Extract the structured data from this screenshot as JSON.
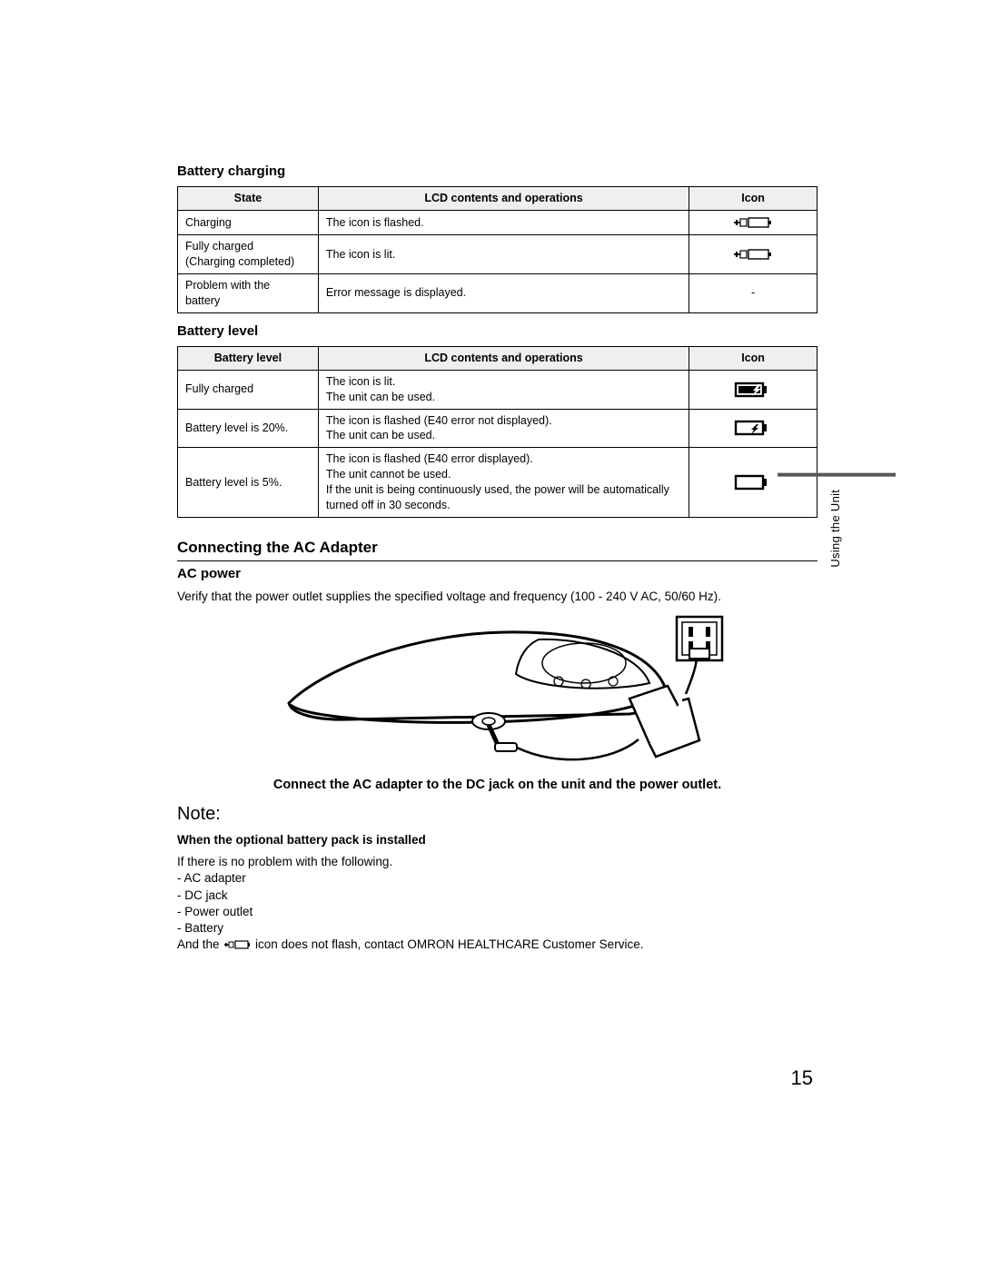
{
  "page_number": "15",
  "side_tab": "Using the Unit",
  "table1": {
    "heading": "Battery charging",
    "cols": [
      "State",
      "LCD contents and operations",
      "Icon"
    ],
    "rows": [
      {
        "state": "Charging",
        "op": "The icon is flashed.",
        "icon": "plug-batt"
      },
      {
        "state": "Fully charged\n(Charging completed)",
        "op": "The icon is lit.",
        "icon": "plug-batt"
      },
      {
        "state": "Problem with the\nbattery",
        "op": "Error message is displayed.",
        "icon": "dash"
      }
    ]
  },
  "table2": {
    "heading": "Battery level",
    "cols": [
      "Battery level",
      "LCD contents and operations",
      "Icon"
    ],
    "rows": [
      {
        "state": "Fully charged",
        "op": "The icon is lit.\nThe unit can be used.",
        "icon": "batt-full"
      },
      {
        "state": "Battery level is 20%.",
        "op": "The icon is flashed (E40 error not displayed).\nThe unit can be used.",
        "icon": "batt-low"
      },
      {
        "state": "Battery level is 5%.",
        "op": "The icon is flashed (E40 error displayed).\nThe unit cannot be used.\nIf the unit is being continuously used, the power will be automatically turned off in 30 seconds.",
        "icon": "batt-empty"
      }
    ]
  },
  "section_ac": {
    "heading": "Connecting the AC Adapter",
    "sub": "AC power",
    "para": "Verify that the power outlet supplies the specified voltage and frequency (100 - 240 V AC, 50/60 Hz).",
    "caption": "Connect the AC adapter to the DC jack on the unit and the power outlet."
  },
  "note": {
    "label": "Note:",
    "sub": "When the optional battery pack is installed",
    "intro": "If there is no problem with the following.",
    "items": [
      "AC adapter",
      "DC jack",
      "Power outlet",
      "Battery"
    ],
    "tail_a": "And the ",
    "tail_b": " icon does not flash, contact OMRON HEALTHCARE Customer Service."
  },
  "colors": {
    "gridline": "#000000",
    "headerbg": "#efefef",
    "sidebar": "#575757"
  }
}
